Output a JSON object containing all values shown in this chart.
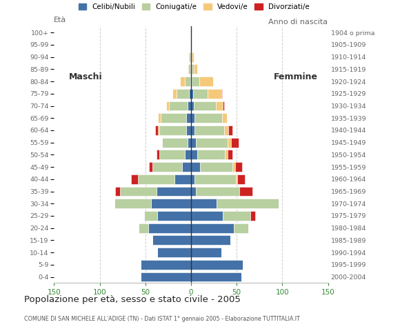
{
  "age_groups": [
    "0-4",
    "5-9",
    "10-14",
    "15-19",
    "20-24",
    "25-29",
    "30-34",
    "35-39",
    "40-44",
    "45-49",
    "50-54",
    "55-59",
    "60-64",
    "65-69",
    "70-74",
    "75-79",
    "80-84",
    "85-89",
    "90-94",
    "95-99",
    "100+"
  ],
  "birth_years": [
    "2000-2004",
    "1995-1999",
    "1990-1994",
    "1985-1989",
    "1980-1984",
    "1975-1979",
    "1970-1974",
    "1965-1969",
    "1960-1964",
    "1955-1959",
    "1950-1954",
    "1945-1949",
    "1940-1944",
    "1935-1939",
    "1930-1934",
    "1925-1929",
    "1920-1924",
    "1915-1919",
    "1910-1914",
    "1905-1909",
    "1904 o prima"
  ],
  "colors": {
    "celibe": "#4472a8",
    "coniugato": "#b8cfa0",
    "vedovo": "#f5c97a",
    "divorziato": "#cc2222"
  },
  "males": {
    "celibe": [
      55,
      55,
      37,
      42,
      47,
      37,
      44,
      38,
      18,
      10,
      7,
      4,
      5,
      5,
      4,
      2,
      1,
      1,
      1,
      0,
      0
    ],
    "coniugato": [
      0,
      0,
      0,
      0,
      10,
      14,
      40,
      40,
      40,
      32,
      28,
      28,
      30,
      28,
      20,
      14,
      6,
      2,
      1,
      1,
      0
    ],
    "vedovo": [
      0,
      0,
      0,
      0,
      0,
      0,
      0,
      0,
      0,
      0,
      0,
      0,
      1,
      3,
      3,
      4,
      5,
      1,
      1,
      0,
      0
    ],
    "divorziato": [
      0,
      0,
      0,
      0,
      0,
      0,
      0,
      5,
      8,
      4,
      3,
      0,
      3,
      0,
      0,
      0,
      0,
      0,
      0,
      0,
      0
    ]
  },
  "females": {
    "celibe": [
      55,
      57,
      33,
      43,
      47,
      35,
      28,
      5,
      4,
      10,
      7,
      5,
      4,
      4,
      3,
      2,
      1,
      1,
      0,
      0,
      0
    ],
    "coniugato": [
      0,
      0,
      0,
      0,
      16,
      30,
      68,
      48,
      45,
      35,
      30,
      35,
      32,
      30,
      24,
      16,
      8,
      2,
      1,
      0,
      0
    ],
    "vedovo": [
      0,
      0,
      0,
      0,
      0,
      0,
      0,
      0,
      2,
      3,
      3,
      4,
      5,
      5,
      8,
      15,
      15,
      4,
      2,
      1,
      1
    ],
    "divorziato": [
      0,
      0,
      0,
      0,
      0,
      5,
      0,
      14,
      8,
      8,
      5,
      8,
      4,
      0,
      1,
      1,
      0,
      0,
      0,
      0,
      0
    ]
  },
  "title": "Popolazione per età, sesso e stato civile - 2005",
  "subtitle": "COMUNE DI SAN MICHELE ALL'ADIGE (TN) - Dati ISTAT 1° gennaio 2005 - Elaborazione TUTTITALIA.IT",
  "label_maschi": "Maschi",
  "label_femmine": "Femmine",
  "label_eta": "Età",
  "label_anno": "Anno di nascita",
  "xlim": 150,
  "legend_labels": [
    "Celibi/Nubili",
    "Coniugati/e",
    "Vedovi/e",
    "Divorziati/e"
  ],
  "bg_color": "#ffffff"
}
